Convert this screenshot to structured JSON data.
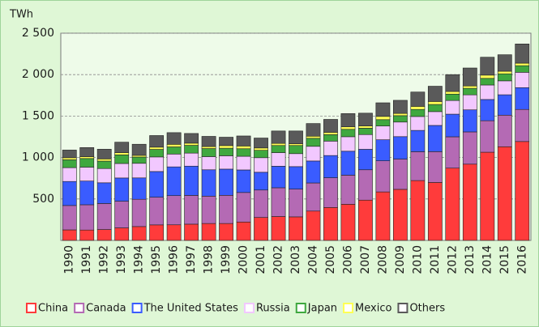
{
  "chart_data": {
    "type": "stacked_bar",
    "y_label": "TWh",
    "categories": [
      "1990",
      "1991",
      "1992",
      "1993",
      "1994",
      "1995",
      "1996",
      "1997",
      "1998",
      "1999",
      "2000",
      "2001",
      "2002",
      "2003",
      "2004",
      "2005",
      "2006",
      "2007",
      "2008",
      "2009",
      "2010",
      "2011",
      "2012",
      "2013",
      "2014",
      "2015",
      "2016"
    ],
    "series": [
      {
        "name": "China",
        "color": "#ff3b3b",
        "values": [
          127,
          125,
          131,
          151,
          167,
          187,
          188,
          196,
          204,
          204,
          222,
          277,
          288,
          284,
          354,
          397,
          436,
          486,
          585,
          616,
          722,
          699,
          872,
          920,
          1064,
          1130,
          1193
        ]
      },
      {
        "name": "Canada",
        "color": "#b46ab4",
        "values": [
          294,
          305,
          314,
          322,
          329,
          334,
          352,
          347,
          330,
          340,
          356,
          331,
          347,
          335,
          339,
          359,
          351,
          366,
          375,
          365,
          348,
          372,
          378,
          389,
          380,
          381,
          387
        ]
      },
      {
        "name": "The United States",
        "color": "#3a5cff",
        "values": [
          290,
          286,
          250,
          280,
          258,
          310,
          347,
          353,
          318,
          316,
          272,
          214,
          260,
          271,
          265,
          268,
          289,
          247,
          254,
          271,
          257,
          316,
          273,
          266,
          256,
          246,
          263
        ]
      },
      {
        "name": "Russia",
        "color": "#f2c8ff",
        "values": [
          167,
          168,
          172,
          175,
          176,
          176,
          155,
          157,
          159,
          161,
          165,
          176,
          164,
          157,
          177,
          174,
          175,
          178,
          166,
          176,
          168,
          167,
          165,
          181,
          175,
          168,
          185
        ]
      },
      {
        "name": "Japan",
        "color": "#3fa83f",
        "values": [
          95,
          104,
          90,
          104,
          76,
          91,
          86,
          94,
          97,
          91,
          91,
          89,
          86,
          98,
          97,
          78,
          89,
          77,
          77,
          77,
          85,
          86,
          77,
          79,
          80,
          85,
          80
        ]
      },
      {
        "name": "Mexico",
        "color": "#ffff55",
        "values": [
          24,
          22,
          26,
          26,
          20,
          27,
          31,
          26,
          24,
          32,
          33,
          28,
          25,
          20,
          25,
          28,
          30,
          27,
          39,
          27,
          37,
          36,
          32,
          28,
          39,
          31,
          30
        ]
      },
      {
        "name": "Others",
        "color": "#5a5a5a",
        "values": [
          93,
          110,
          117,
          127,
          134,
          140,
          141,
          117,
          123,
          101,
          121,
          120,
          150,
          155,
          153,
          156,
          160,
          154,
          164,
          158,
          173,
          184,
          203,
          217,
          216,
          199,
          232
        ]
      }
    ],
    "ylim": [
      0,
      2500
    ],
    "yticks": [
      {
        "value": 500,
        "label": "500"
      },
      {
        "value": 1000,
        "label": "1 000"
      },
      {
        "value": 1500,
        "label": "1 500"
      },
      {
        "value": 2000,
        "label": "2 000"
      },
      {
        "value": 2500,
        "label": "2 500"
      }
    ],
    "grid": true,
    "legend": "bottom"
  }
}
